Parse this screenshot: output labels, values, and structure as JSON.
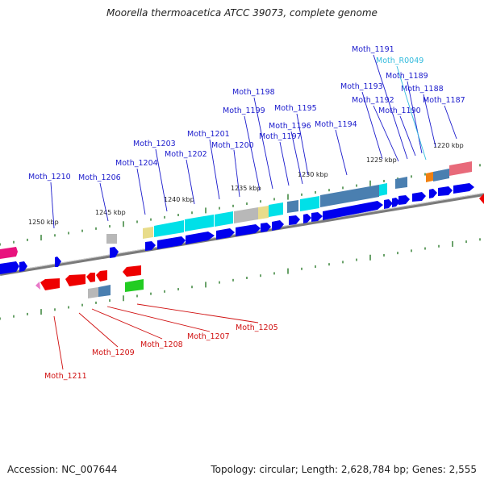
{
  "title": "Moorella thermoacetica ATCC 39073, complete genome",
  "footer": {
    "accession": "Accession: NC_007644",
    "topology": "Topology: circular; Length: 2,628,784 bp; Genes: 2,555"
  },
  "colors": {
    "forward_label": "#1a1acc",
    "reverse_label": "#d01010",
    "rna_label": "#33bbdd",
    "cds_forward": "#0000ee",
    "cds_reverse": "#ee0000",
    "backbone": "#888888",
    "tick": "#2a7a2a"
  },
  "scale_labels": [
    "1250 kbp",
    "1245 kbp",
    "1240 kbp",
    "1235 kbp",
    "1230 kbp",
    "1225 kbp",
    "1220 kbp"
  ],
  "forward_genes": [
    "Moth_1210",
    "Moth_1206",
    "Moth_1204",
    "Moth_1203",
    "Moth_1202",
    "Moth_1201",
    "Moth_1200",
    "Moth_1199",
    "Moth_1198",
    "Moth_1197",
    "Moth_1196",
    "Moth_1195",
    "Moth_1194",
    "Moth_1193",
    "Moth_1192",
    "Moth_1191",
    "Moth_1190",
    "Moth_1189",
    "Moth_1188",
    "Moth_1187"
  ],
  "rna_genes": [
    "Moth_R0049"
  ],
  "reverse_genes": [
    "Moth_1211",
    "Moth_1209",
    "Moth_1208",
    "Moth_1207",
    "Moth_1205"
  ]
}
